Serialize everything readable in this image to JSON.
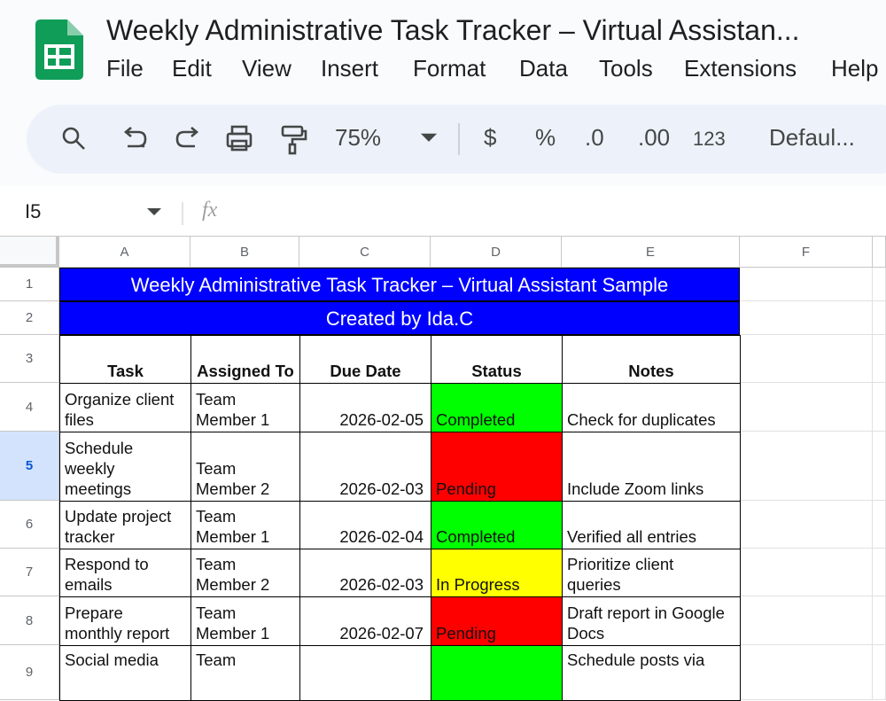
{
  "header": {
    "title": "Weekly Administrative Task Tracker – Virtual Assistan...",
    "menu": [
      "File",
      "Edit",
      "View",
      "Insert",
      "Format",
      "Data",
      "Tools",
      "Extensions",
      "Help"
    ]
  },
  "toolbar": {
    "zoom": "75%",
    "currency": "$",
    "percent": "%",
    "decrease_decimal": ".0",
    "increase_decimal": ".00",
    "number_format": "123",
    "font": "Defaul..."
  },
  "formula_bar": {
    "name_box": "I5",
    "fx": "fx"
  },
  "sheet": {
    "columns": [
      "A",
      "B",
      "C",
      "D",
      "E",
      "F"
    ],
    "rows": [
      "1",
      "2",
      "3",
      "4",
      "5",
      "6",
      "7",
      "8",
      "9"
    ],
    "selected_row": 4,
    "title_row": "Weekly Administrative Task Tracker – Virtual Assistant Sample",
    "subtitle_row": "Created by Ida.C",
    "banner_color": "#0000ff",
    "headers": [
      "Task",
      "Assigned To",
      "Due Date",
      "Status",
      "Notes"
    ],
    "tasks": [
      {
        "cells": [
          "Organize client files",
          "Team Member 1",
          "2026-02-05",
          "Completed",
          "Check for duplicates"
        ],
        "status_color": "#00ff00"
      },
      {
        "cells": [
          "Schedule weekly meetings",
          "Team Member 2",
          "2026-02-03",
          "Pending",
          "Include Zoom links"
        ],
        "status_color": "#ff0000"
      },
      {
        "cells": [
          "Update project tracker",
          "Team Member 1",
          "2026-02-04",
          "Completed",
          "Verified all entries"
        ],
        "status_color": "#00ff00"
      },
      {
        "cells": [
          "Respond to emails",
          "Team Member 2",
          "2026-02-03",
          "In Progress",
          "Prioritize client queries"
        ],
        "status_color": "#ffff00"
      },
      {
        "cells": [
          "Prepare monthly report",
          "Team Member 1",
          "2026-02-07",
          "Pending",
          "Draft report in Google Docs"
        ],
        "status_color": "#ff0000"
      },
      {
        "cells": [
          "Social media",
          "Team",
          null,
          null,
          "Schedule posts via"
        ],
        "status_color": "#00ff00"
      }
    ]
  }
}
